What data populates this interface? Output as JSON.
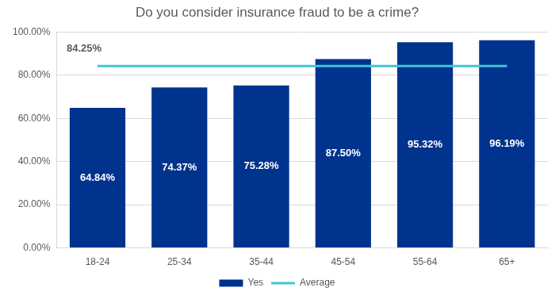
{
  "chart_data": {
    "type": "bar",
    "title": "Do you consider insurance fraud to be a crime?",
    "categories": [
      "18-24",
      "25-34",
      "35-44",
      "45-54",
      "55-64",
      "65+"
    ],
    "series": [
      {
        "name": "Yes",
        "type": "bar",
        "color": "#00338d",
        "values": [
          64.84,
          74.37,
          75.28,
          87.5,
          95.32,
          96.19
        ],
        "value_labels": [
          "64.84%",
          "74.37%",
          "75.28%",
          "87.50%",
          "95.32%",
          "96.19%"
        ]
      },
      {
        "name": "Average",
        "type": "line",
        "color": "#3ec6d6",
        "marker": "none",
        "values": [
          84.25,
          84.25,
          84.25,
          84.25,
          84.25,
          84.25
        ],
        "value_labels": [
          "84.25%",
          null,
          null,
          null,
          null,
          null
        ]
      }
    ],
    "ylim": [
      0,
      100
    ],
    "yticks": [
      {
        "value": 0,
        "label": "0.00%"
      },
      {
        "value": 20,
        "label": "20.00%"
      },
      {
        "value": 40,
        "label": "40.00%"
      },
      {
        "value": 60,
        "label": "60.00%"
      },
      {
        "value": 80,
        "label": "80.00%"
      },
      {
        "value": 100,
        "label": "100.00%"
      }
    ],
    "grid": true,
    "legend": "bottom",
    "data_labels": true
  }
}
